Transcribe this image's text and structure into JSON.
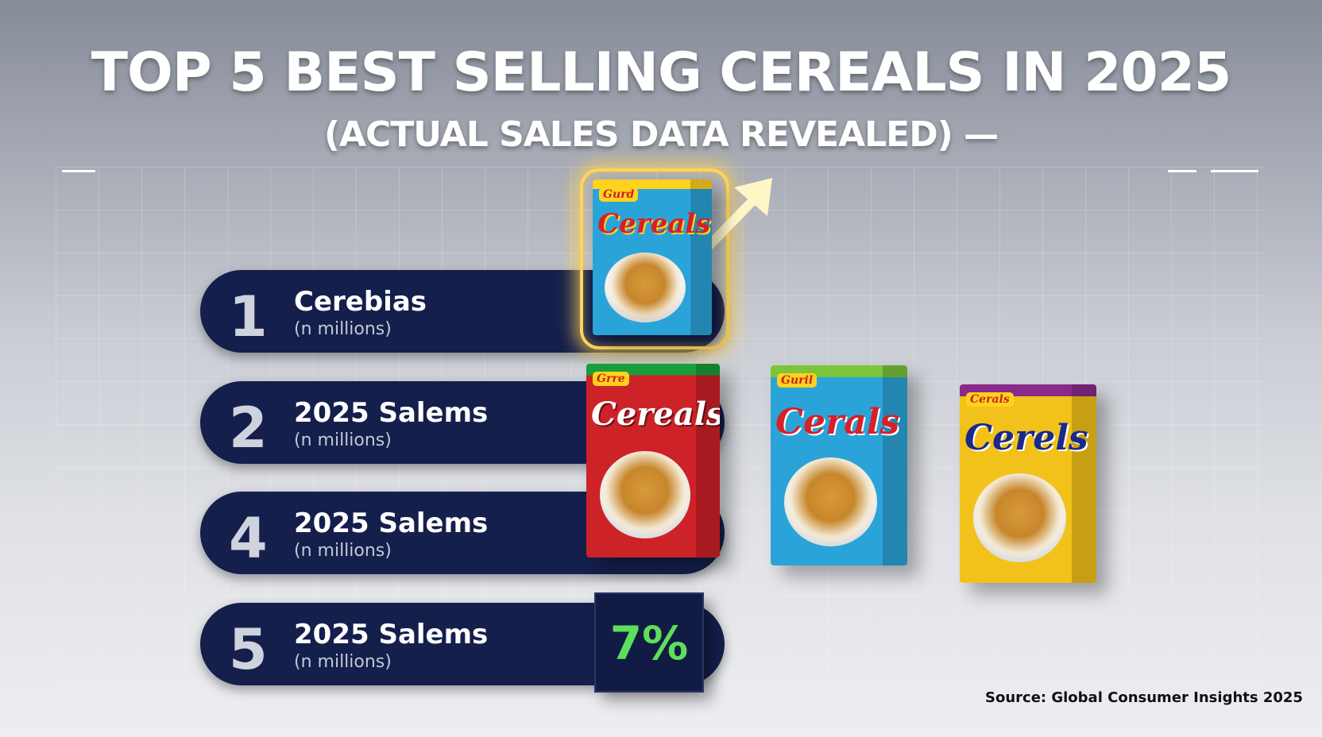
{
  "header": {
    "title": "TOP 5 BEST SELLING CEREALS IN 2025",
    "subtitle": "(ACTUAL SALES DATA REVEALED) —"
  },
  "rankings": [
    {
      "rank": "1",
      "name": "Cerebias",
      "sub": "(n millions)"
    },
    {
      "rank": "2",
      "name": "2025 Salems",
      "sub": "(n millions)"
    },
    {
      "rank": "4",
      "name": "2025 Salems",
      "sub": "(n millions)"
    },
    {
      "rank": "5",
      "name": "2025 Salems",
      "sub": "(n millions)"
    }
  ],
  "highlight": {
    "percent": "7%",
    "color": "#5ce05c"
  },
  "boxes": [
    {
      "brand": "Gurd",
      "logo": "Cereals",
      "color": "#2aa4d8",
      "accent": "#ffd21e"
    },
    {
      "brand": "Grre",
      "logo": "Cereals",
      "color": "#cc2228",
      "accent": "#1a9e3a"
    },
    {
      "brand": "Guril",
      "logo": "Cerals",
      "color": "#2aa4d8",
      "accent": "#7cc43a"
    },
    {
      "brand": "Cerals",
      "logo": "Cerels",
      "color": "#f2c21a",
      "accent": "#8a2a8a"
    }
  ],
  "source": "Source: Global Consumer Insights 2025",
  "colors": {
    "bar": "#141f4c",
    "glow": "#ffd45a",
    "arrow": "#fff6c8"
  }
}
